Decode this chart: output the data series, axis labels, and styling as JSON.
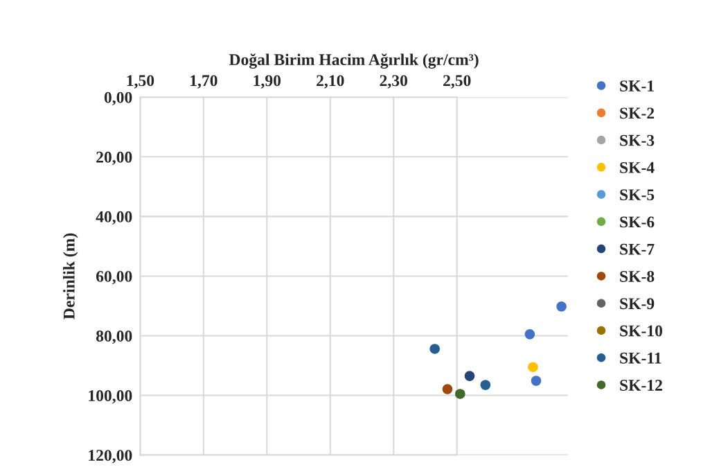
{
  "chart_data": {
    "type": "scatter",
    "xlabel": "Doğal Birim Hacim Ağırlık (gr/cm³)",
    "ylabel": "Derinlik (m)",
    "xlim": [
      1.5,
      2.85
    ],
    "ylim": [
      120,
      0
    ],
    "xticks": [
      {
        "value": 1.5,
        "label": "1,50"
      },
      {
        "value": 1.7,
        "label": "1,70"
      },
      {
        "value": 1.9,
        "label": "1,90"
      },
      {
        "value": 2.1,
        "label": "2,10"
      },
      {
        "value": 2.3,
        "label": "2,30"
      },
      {
        "value": 2.5,
        "label": "2,50"
      }
    ],
    "yticks": [
      {
        "value": 0,
        "label": "0,00"
      },
      {
        "value": 20,
        "label": "20,00"
      },
      {
        "value": 40,
        "label": "40,00"
      },
      {
        "value": 60,
        "label": "60,00"
      },
      {
        "value": 80,
        "label": "80,00"
      },
      {
        "value": 100,
        "label": "100,00"
      },
      {
        "value": 120,
        "label": "120,00"
      }
    ],
    "grid": true,
    "legend": "right",
    "marker": "circle",
    "series": [
      {
        "name": "SK-1",
        "color": "#4472c4",
        "x": [
          2.73,
          2.75,
          2.83
        ],
        "values": [
          79.5,
          95.1,
          70.2
        ]
      },
      {
        "name": "SK-2",
        "color": "#ed7d31"
      },
      {
        "name": "SK-3",
        "color": "#a5a5a5"
      },
      {
        "name": "SK-4",
        "color": "#ffc000",
        "x": [
          2.74
        ],
        "values": [
          90.5
        ]
      },
      {
        "name": "SK-5",
        "color": "#5b9bd5"
      },
      {
        "name": "SK-6",
        "color": "#70ad47"
      },
      {
        "name": "SK-7",
        "color": "#264478",
        "x": [
          2.54
        ],
        "values": [
          93.5
        ]
      },
      {
        "name": "SK-8",
        "color": "#9e480e",
        "x": [
          2.47
        ],
        "values": [
          97.9
        ]
      },
      {
        "name": "SK-9",
        "color": "#636363"
      },
      {
        "name": "SK-10",
        "color": "#997300"
      },
      {
        "name": "SK-11",
        "color": "#255e91",
        "x": [
          2.43,
          2.59
        ],
        "values": [
          84.4,
          96.5
        ]
      },
      {
        "name": "SK-12",
        "color": "#43682b",
        "x": [
          2.51
        ],
        "values": [
          99.5
        ]
      }
    ]
  }
}
